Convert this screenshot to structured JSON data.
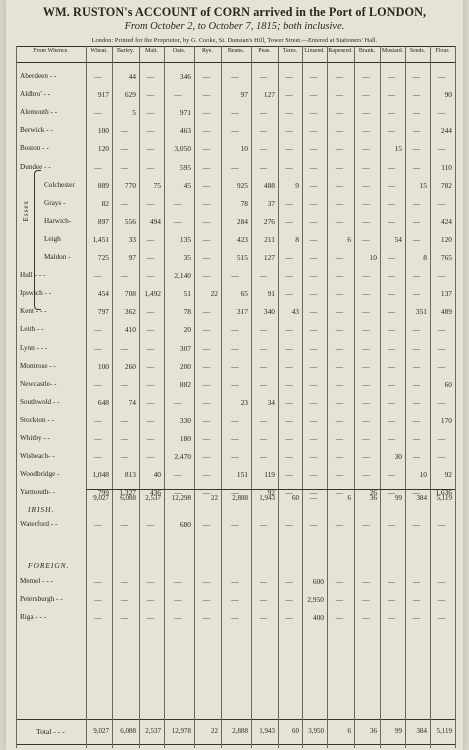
{
  "title": "WM. RUSTON's ACCOUNT of CORN arrived in the Port of LONDON,",
  "subtitle": "From October 2, to October 7, 1815; both inclusive.",
  "imprint": "London: Printed for the Proprietor, by G. Cooke, St. Dunstan's Hill, Tower Street.—Entered at Stationers' Hall.",
  "columns": [
    "From Whence.",
    "Wheat.",
    "Barley.",
    "Malt.",
    "Oats.",
    "Rye.",
    "Beans.",
    "Peas.",
    "Tares.",
    "Linseed.",
    "Rapeseed.",
    "Brank.",
    "Mustard.",
    "Seeds.",
    "Flour."
  ],
  "essex_label": "Essex",
  "rows": [
    {
      "port": "Aberdeen - -",
      "vals": [
        "—",
        "44",
        "—",
        "346",
        "—",
        "—",
        "—",
        "—",
        "—",
        "—",
        "—",
        "—",
        "—",
        "—"
      ]
    },
    {
      "port": "Aldbro' - -",
      "vals": [
        "917",
        "629",
        "—",
        "—",
        "—",
        "97",
        "127",
        "—",
        "—",
        "—",
        "—",
        "—",
        "—",
        "90"
      ]
    },
    {
      "port": "Alemouth - -",
      "vals": [
        "—",
        "5",
        "—",
        "971",
        "—",
        "—",
        "—",
        "—",
        "—",
        "—",
        "—",
        "—",
        "—",
        "—"
      ]
    },
    {
      "port": "Berwick - -",
      "vals": [
        "100",
        "—",
        "—",
        "463",
        "—",
        "—",
        "—",
        "—",
        "—",
        "—",
        "—",
        "—",
        "—",
        "244"
      ]
    },
    {
      "port": "Boston - -",
      "vals": [
        "120",
        "—",
        "—",
        "3,050",
        "—",
        "10",
        "—",
        "—",
        "—",
        "—",
        "—",
        "15",
        "—",
        "—"
      ]
    },
    {
      "port": "Dundee - -",
      "vals": [
        "—",
        "—",
        "—",
        "595",
        "—",
        "—",
        "—",
        "—",
        "—",
        "—",
        "—",
        "—",
        "—",
        "110"
      ]
    },
    {
      "port": "Colchester",
      "vals": [
        "889",
        "770",
        "75",
        "45",
        "—",
        "925",
        "488",
        "9",
        "—",
        "—",
        "—",
        "—",
        "15",
        "782"
      ]
    },
    {
      "port": "Grays -",
      "vals": [
        "82",
        "—",
        "—",
        "—",
        "—",
        "78",
        "37",
        "—",
        "—",
        "—",
        "—",
        "—",
        "—",
        "—"
      ]
    },
    {
      "port": "Harwich-",
      "vals": [
        "897",
        "556",
        "494",
        "—",
        "—",
        "284",
        "276",
        "—",
        "—",
        "—",
        "—",
        "—",
        "—",
        "424"
      ]
    },
    {
      "port": "Leigh",
      "vals": [
        "1,451",
        "33",
        "—",
        "135",
        "—",
        "423",
        "211",
        "8",
        "—",
        "6",
        "—",
        "54",
        "—",
        "120"
      ]
    },
    {
      "port": "Maldon -",
      "vals": [
        "725",
        "97",
        "—",
        "35",
        "—",
        "515",
        "127",
        "—",
        "—",
        "—",
        "10",
        "—",
        "8",
        "765"
      ]
    },
    {
      "port": "Hull - - -",
      "vals": [
        "—",
        "—",
        "—",
        "2,140",
        "—",
        "—",
        "—",
        "—",
        "—",
        "—",
        "—",
        "—",
        "—",
        "—"
      ]
    },
    {
      "port": "Ipswich - -",
      "vals": [
        "454",
        "708",
        "1,492",
        "51",
        "22",
        "65",
        "91",
        "—",
        "—",
        "—",
        "—",
        "—",
        "—",
        "137"
      ]
    },
    {
      "port": "Kent - - -",
      "vals": [
        "797",
        "362",
        "—",
        "78",
        "—",
        "317",
        "340",
        "43",
        "—",
        "—",
        "—",
        "—",
        "351",
        "489"
      ]
    },
    {
      "port": "Leith - -",
      "vals": [
        "—",
        "410",
        "—",
        "20",
        "—",
        "—",
        "—",
        "—",
        "—",
        "—",
        "—",
        "—",
        "—",
        "—"
      ]
    },
    {
      "port": "Lynn - - -",
      "vals": [
        "—",
        "—",
        "—",
        "307",
        "—",
        "—",
        "—",
        "—",
        "—",
        "—",
        "—",
        "—",
        "—",
        "—"
      ]
    },
    {
      "port": "Montrose - -",
      "vals": [
        "100",
        "260",
        "—",
        "200",
        "—",
        "—",
        "—",
        "—",
        "—",
        "—",
        "—",
        "—",
        "—",
        "—"
      ]
    },
    {
      "port": "Newcastle- -",
      "vals": [
        "—",
        "—",
        "—",
        "882",
        "—",
        "—",
        "—",
        "—",
        "—",
        "—",
        "—",
        "—",
        "—",
        "60"
      ]
    },
    {
      "port": "Southwold - -",
      "vals": [
        "648",
        "74",
        "—",
        "—",
        "—",
        "23",
        "34",
        "—",
        "—",
        "—",
        "—",
        "—",
        "—",
        "—"
      ]
    },
    {
      "port": "Stockton - -",
      "vals": [
        "—",
        "—",
        "—",
        "330",
        "—",
        "—",
        "—",
        "—",
        "—",
        "—",
        "—",
        "—",
        "—",
        "170"
      ]
    },
    {
      "port": "Whitby - -",
      "vals": [
        "—",
        "—",
        "—",
        "180",
        "—",
        "—",
        "—",
        "—",
        "—",
        "—",
        "—",
        "—",
        "—",
        "—"
      ]
    },
    {
      "port": "Wisbeach- -",
      "vals": [
        "—",
        "—",
        "—",
        "2,470",
        "—",
        "—",
        "—",
        "—",
        "—",
        "—",
        "—",
        "30",
        "—",
        "—"
      ]
    },
    {
      "port": "Woodbridge -",
      "vals": [
        "1,048",
        "813",
        "40",
        "—",
        "—",
        "151",
        "119",
        "—",
        "—",
        "—",
        "—",
        "—",
        "10",
        "92"
      ]
    },
    {
      "port": "Yarmouth- -",
      "vals": [
        "799",
        "1,327",
        "436",
        "—",
        "—",
        "—",
        "92",
        "—",
        "—",
        "—",
        "26",
        "—",
        "—",
        "1,636"
      ]
    }
  ],
  "subtotal": [
    "9,027",
    "6,088",
    "2,537",
    "12,298",
    "22",
    "2,888",
    "1,943",
    "60",
    "—",
    "6",
    "36",
    "99",
    "384",
    "5,119"
  ],
  "irish_label": "IRISH.",
  "irish_rows": [
    {
      "port": "Waterford - -",
      "vals": [
        "—",
        "—",
        "—",
        "680",
        "—",
        "—",
        "—",
        "—",
        "—",
        "—",
        "—",
        "—",
        "—",
        "—"
      ]
    }
  ],
  "foreign_label": "FOREIGN.",
  "foreign_rows": [
    {
      "port": "Memel - - -",
      "vals": [
        "—",
        "—",
        "—",
        "—",
        "—",
        "—",
        "—",
        "—",
        "600",
        "—",
        "—",
        "—",
        "—",
        "—"
      ]
    },
    {
      "port": "Petersburgh - -",
      "vals": [
        "—",
        "—",
        "—",
        "—",
        "—",
        "—",
        "—",
        "—",
        "2,950",
        "—",
        "—",
        "—",
        "—",
        "—"
      ]
    },
    {
      "port": "Riga - - -",
      "vals": [
        "—",
        "—",
        "—",
        "—",
        "—",
        "—",
        "—",
        "—",
        "400",
        "—",
        "—",
        "—",
        "—",
        "—"
      ]
    }
  ],
  "total_label": "Total - - -",
  "total": [
    "9,027",
    "6,088",
    "2,537",
    "12,978",
    "22",
    "2,888",
    "1,943",
    "60",
    "3,950",
    "6",
    "36",
    "99",
    "384",
    "5,119"
  ]
}
